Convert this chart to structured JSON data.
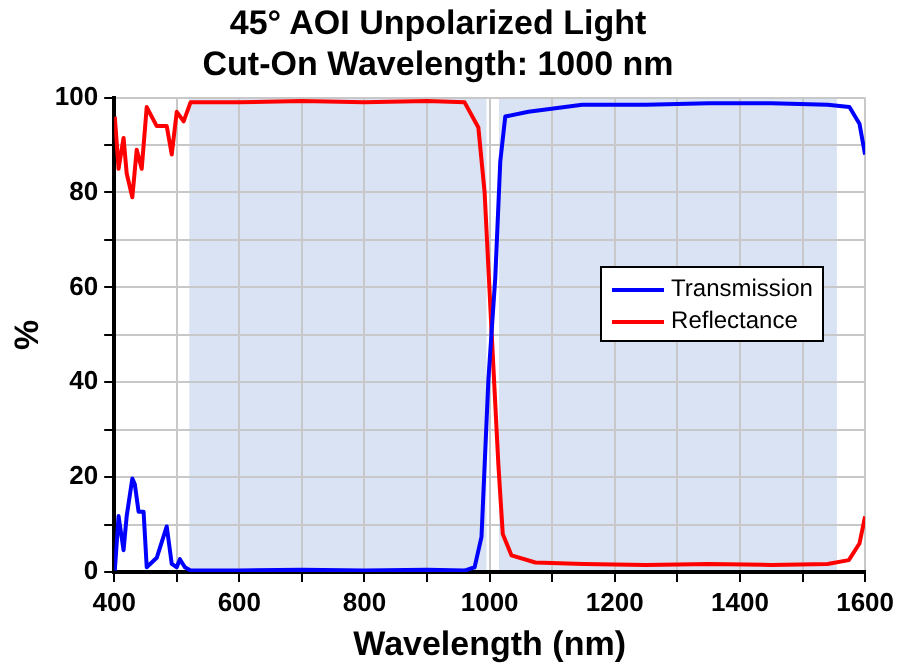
{
  "chart_data": {
    "type": "line",
    "title": "45° AOI Unpolarized Light",
    "subtitle": "Cut-On Wavelength: 1000 nm",
    "xlabel": "Wavelength (nm)",
    "ylabel": "%",
    "xlim": [
      400,
      1600
    ],
    "xticks": [
      400,
      {
        "value": 500,
        "label": null
      },
      600,
      {
        "value": 700,
        "label": null
      },
      800,
      {
        "value": 900,
        "label": null
      },
      1000,
      {
        "value": 1100,
        "label": null
      },
      1200,
      {
        "value": 1300,
        "label": null
      },
      1400,
      {
        "value": 1500,
        "label": null
      },
      1600
    ],
    "ylim": [
      0,
      100
    ],
    "yticks": [
      0,
      {
        "value": 10,
        "label": null
      },
      20,
      {
        "value": 30,
        "label": null
      },
      40,
      {
        "value": 50,
        "label": null
      },
      60,
      {
        "value": 70,
        "label": null
      },
      80,
      {
        "value": 90,
        "label": null
      },
      100
    ],
    "grid": true,
    "legend": "right",
    "marker": "none",
    "line_style": "solid",
    "bands": [
      {
        "axis": "x",
        "from": 520,
        "to": 995,
        "color": "#dae3f3"
      },
      {
        "axis": "x",
        "from": 1015,
        "to": 1555,
        "color": "#dae3f3"
      }
    ],
    "series": [
      {
        "name": "Transmission",
        "color": "#0000ff",
        "x": [
          401,
          407,
          415,
          420,
          429,
          433,
          439,
          447,
          452,
          468,
          484,
          492,
          500,
          505,
          513,
          522,
          600,
          700,
          800,
          900,
          960,
          976,
          987,
          998,
          1009,
          1017,
          1025,
          1062,
          1148,
          1250,
          1350,
          1450,
          1540,
          1575,
          1591,
          1600
        ],
        "values": [
          0.3,
          11.8,
          4.6,
          11.8,
          19.7,
          18.5,
          12.7,
          12.7,
          1,
          3,
          9.6,
          1.7,
          1,
          2.7,
          1,
          0.3,
          0.3,
          0.5,
          0.3,
          0.5,
          0.3,
          1,
          7.4,
          40.5,
          62,
          86.5,
          96,
          97,
          98.5,
          98.5,
          98.8,
          98.8,
          98.5,
          98,
          94.5,
          88
        ]
      },
      {
        "name": "Reflectance",
        "color": "#ff0000",
        "x": [
          401,
          407,
          415,
          420,
          429,
          436,
          444,
          452,
          468,
          484,
          492,
          500,
          511,
          522,
          600,
          700,
          800,
          900,
          960,
          982,
          992,
          1003,
          1014,
          1021,
          1035,
          1073,
          1150,
          1250,
          1350,
          1450,
          1540,
          1574,
          1591,
          1600
        ],
        "values": [
          96,
          85,
          91.5,
          84,
          79,
          89,
          85,
          98,
          94,
          94,
          88,
          97,
          95,
          99,
          99,
          99.3,
          99,
          99.3,
          99,
          93.7,
          80,
          51,
          22.6,
          8,
          3.5,
          2,
          1.7,
          1.5,
          1.7,
          1.5,
          1.7,
          2.5,
          6,
          11.7
        ]
      }
    ]
  }
}
